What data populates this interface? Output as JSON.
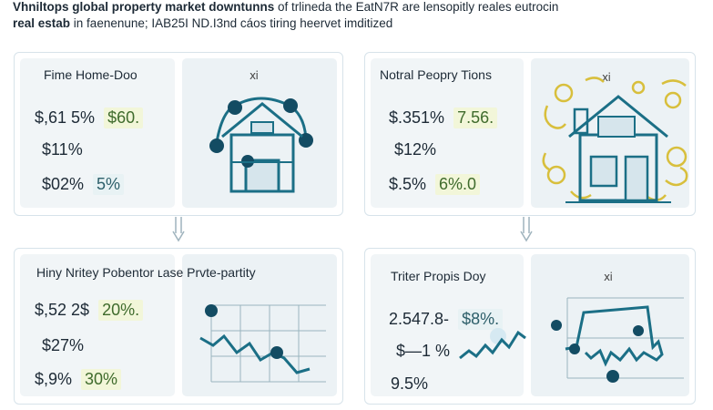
{
  "header": {
    "line1_bold": "Vhniltops global property market downtunns",
    "line1_rest": " of trlineda the EatN7R are lensopitly reales eutrocin",
    "line2_bold": "real estab",
    "line2_rest": " in faenenune; IAB25I ND.I3nd cáos tiring heervet imditized"
  },
  "panels": [
    {
      "title": "Fime Home-Doo",
      "badge": "ⅺ",
      "rows": [
        {
          "value": "$,61 5%",
          "chip": "$60."
        },
        {
          "value": "$11%",
          "chip": ""
        },
        {
          "value": "$02%",
          "chip": "5%"
        }
      ],
      "art": "house-network-icon"
    },
    {
      "title": "Notral Peopry Tions",
      "badge": "ⅺ",
      "rows": [
        {
          "value": "$.351%",
          "chip": "7.56."
        },
        {
          "value": "$12%",
          "chip": ""
        },
        {
          "value": "$.5%",
          "chip": "6%.0"
        }
      ],
      "art": "house-gear-icon"
    },
    {
      "title": "Hiny Nritey Pobentor ʟase Prvte-partity",
      "badge": "",
      "rows": [
        {
          "value": "$,52 2$",
          "chip": "20%."
        },
        {
          "value": "$27%",
          "chip": ""
        },
        {
          "value": "$,9%",
          "chip": "30%"
        }
      ],
      "art": "line-chart-icon"
    },
    {
      "title": "Triter Propis Doy",
      "badge": "ⅺ",
      "rows": [
        {
          "value": "2.547.8-",
          "chip": "$8%."
        },
        {
          "value": "$—1 %",
          "chip": ""
        },
        {
          "value": "9.5%",
          "chip": ""
        }
      ],
      "art": "wave-chart-icon"
    }
  ],
  "colors": {
    "accent": "#1b6f86",
    "dark_node": "#134c63",
    "gold": "#d8bf3c",
    "panel_border": "#d7e3ea",
    "inner_bg": "#eef4f7",
    "chip_bg": "#f2f6d9"
  }
}
